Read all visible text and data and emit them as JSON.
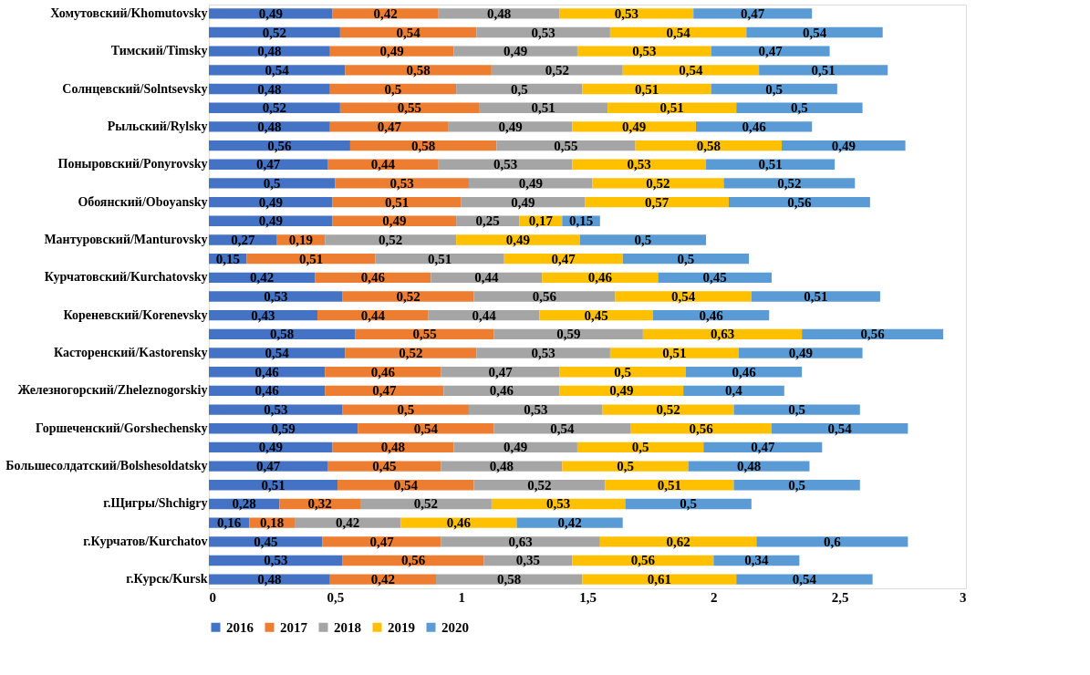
{
  "chart_data": {
    "type": "bar",
    "orientation": "horizontal",
    "stacked": true,
    "grid": false,
    "legend": "bottom",
    "xlim": [
      0,
      3
    ],
    "xticks": [
      {
        "value": 0,
        "label": "0"
      },
      {
        "value": 0.5,
        "label": "0,5"
      },
      {
        "value": 1,
        "label": "1"
      },
      {
        "value": 1.5,
        "label": "1,5"
      },
      {
        "value": 2,
        "label": "2"
      },
      {
        "value": 2.5,
        "label": "2,5"
      },
      {
        "value": 3,
        "label": "3"
      }
    ],
    "categories": [
      "Хомутовский/Khomutovsky",
      null,
      "Тимский/Timsky",
      null,
      "Солнцевский/Solntsevsky",
      null,
      "Рыльский/Rylsky",
      null,
      "Поныровский/Ponyrovsky",
      null,
      "Обоянский/Oboyansky",
      null,
      "Мантуровский/Manturovsky",
      null,
      "Курчатовский/Kurchatovsky",
      null,
      "Кореневский/Korenevsky",
      null,
      "Касторенский/Kastorensky",
      null,
      "Железногорский/Zheleznogorskiy",
      null,
      "Горшеченский/Gorshechensky",
      null,
      "Большесолдатский/Bolshesoldatsky",
      null,
      "г.Щигры/Shchigry",
      null,
      "г.Курчатов/Kurchatov",
      null,
      "г.Курск/Kursk"
    ],
    "series": [
      {
        "name": "2016",
        "color": "#4472c4",
        "values": [
          0.49,
          0.52,
          0.48,
          0.54,
          0.48,
          0.52,
          0.48,
          0.56,
          0.47,
          0.5,
          0.49,
          0.49,
          0.27,
          0.15,
          0.42,
          0.53,
          0.43,
          0.58,
          0.54,
          0.46,
          0.46,
          0.53,
          0.59,
          0.49,
          0.47,
          0.51,
          0.28,
          0.16,
          0.45,
          0.53,
          0.48
        ],
        "value_labels": [
          "0,49",
          "0,52",
          "0,48",
          "0,54",
          "0,48",
          "0,52",
          "0,48",
          "0,56",
          "0,47",
          "0,5",
          "0,49",
          "0,49",
          "0,27",
          "0,15",
          "0,42",
          "0,53",
          "0,43",
          "0,58",
          "0,54",
          "0,46",
          "0,46",
          "0,53",
          "0,59",
          "0,49",
          "0,47",
          "0,51",
          "0,28",
          "0,16",
          "0,45",
          "0,53",
          "0,48"
        ]
      },
      {
        "name": "2017",
        "color": "#ed7d31",
        "values": [
          0.42,
          0.54,
          0.49,
          0.58,
          0.5,
          0.55,
          0.47,
          0.58,
          0.44,
          0.53,
          0.51,
          0.49,
          0.19,
          0.51,
          0.46,
          0.52,
          0.44,
          0.55,
          0.52,
          0.46,
          0.47,
          0.5,
          0.54,
          0.48,
          0.45,
          0.54,
          0.32,
          0.18,
          0.47,
          0.56,
          0.42
        ],
        "value_labels": [
          "0,42",
          "0,54",
          "0,49",
          "0,58",
          "0,5",
          "0,55",
          "0,47",
          "0,58",
          "0,44",
          "0,53",
          "0,51",
          "0,49",
          "0,19",
          "0,51",
          "0,46",
          "0,52",
          "0,44",
          "0,55",
          "0,52",
          "0,46",
          "0,47",
          "0,5",
          "0,54",
          "0,48",
          "0,45",
          "0,54",
          "0,32",
          "0,18",
          "0,47",
          "0,56",
          "0,42"
        ]
      },
      {
        "name": "2018",
        "color": "#a5a5a5",
        "values": [
          0.48,
          0.53,
          0.49,
          0.52,
          0.5,
          0.51,
          0.49,
          0.55,
          0.53,
          0.49,
          0.49,
          0.25,
          0.52,
          0.51,
          0.44,
          0.56,
          0.44,
          0.59,
          0.53,
          0.47,
          0.46,
          0.53,
          0.54,
          0.49,
          0.48,
          0.52,
          0.52,
          0.42,
          0.63,
          0.35,
          0.58
        ],
        "value_labels": [
          "0,48",
          "0,53",
          "0,49",
          "0,52",
          "0,5",
          "0,51",
          "0,49",
          "0,55",
          "0,53",
          "0,49",
          "0,49",
          "0,25",
          "0,52",
          "0,51",
          "0,44",
          "0,56",
          "0,44",
          "0,59",
          "0,53",
          "0,47",
          "0,46",
          "0,53",
          "0,54",
          "0,49",
          "0,48",
          "0,52",
          "0,52",
          "0,42",
          "0,63",
          "0,35",
          "0,58"
        ]
      },
      {
        "name": "2019",
        "color": "#ffc000",
        "values": [
          0.53,
          0.54,
          0.53,
          0.54,
          0.51,
          0.51,
          0.49,
          0.58,
          0.53,
          0.52,
          0.57,
          0.17,
          0.49,
          0.47,
          0.46,
          0.54,
          0.45,
          0.63,
          0.51,
          0.5,
          0.49,
          0.52,
          0.56,
          0.5,
          0.5,
          0.51,
          0.53,
          0.46,
          0.62,
          0.56,
          0.61
        ],
        "value_labels": [
          "0,53",
          "0,54",
          "0,53",
          "0,54",
          "0,51",
          "0,51",
          "0,49",
          "0,58",
          "0,53",
          "0,52",
          "0,57",
          "0,17",
          "0,49",
          "0,47",
          "0,46",
          "0,54",
          "0,45",
          "0,63",
          "0,51",
          "0,5",
          "0,49",
          "0,52",
          "0,56",
          "0,5",
          "0,5",
          "0,51",
          "0,53",
          "0,46",
          "0,62",
          "0,56",
          "0,61"
        ]
      },
      {
        "name": "2020",
        "color": "#5b9bd5",
        "values": [
          0.47,
          0.54,
          0.47,
          0.51,
          0.5,
          0.5,
          0.46,
          0.49,
          0.51,
          0.52,
          0.56,
          0.15,
          0.5,
          0.5,
          0.45,
          0.51,
          0.46,
          0.56,
          0.49,
          0.46,
          0.4,
          0.5,
          0.54,
          0.47,
          0.48,
          0.5,
          0.5,
          0.42,
          0.6,
          0.34,
          0.54
        ],
        "value_labels": [
          "0,47",
          "0,54",
          "0,47",
          "0,51",
          "0,5",
          "0,5",
          "0,46",
          "0,49",
          "0,51",
          "0,52",
          "0,56",
          "0,15",
          "0,5",
          "0,5",
          "0,45",
          "0,51",
          "0,46",
          "0,56",
          "0,49",
          "0,46",
          "0,4",
          "0,5",
          "0,54",
          "0,47",
          "0,48",
          "0,5",
          "0,5",
          "0,42",
          "0,6",
          "0,34",
          "0,54"
        ]
      }
    ]
  }
}
